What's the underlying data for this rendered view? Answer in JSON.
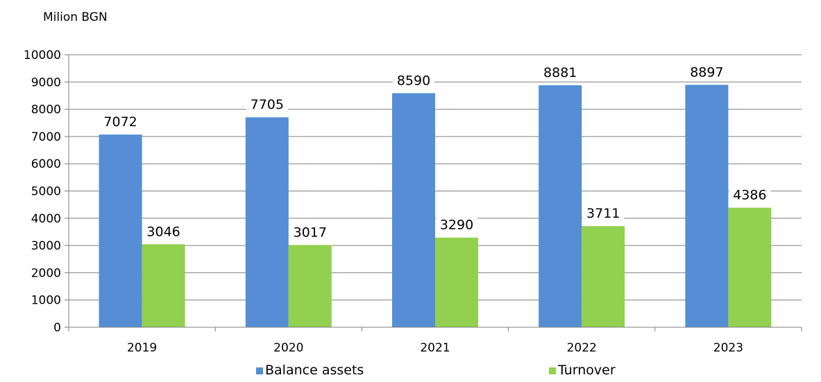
{
  "chart_data": {
    "type": "bar",
    "title": "",
    "ylabel": "Milion BGN",
    "xlabel": "",
    "categories": [
      "2019",
      "2020",
      "2021",
      "2022",
      "2023"
    ],
    "series": [
      {
        "name": "Balance assets",
        "values": [
          7072,
          7705,
          8590,
          8881,
          8897
        ],
        "color": "#558ED5"
      },
      {
        "name": "Turnover",
        "values": [
          3046,
          3017,
          3290,
          3711,
          4386
        ],
        "color": "#92D050"
      }
    ],
    "ylim": [
      0,
      10000
    ],
    "yticks": [
      0,
      1000,
      2000,
      3000,
      4000,
      5000,
      6000,
      7000,
      8000,
      9000,
      10000
    ],
    "grid": true,
    "data_labels": true,
    "legend_position": "bottom"
  }
}
